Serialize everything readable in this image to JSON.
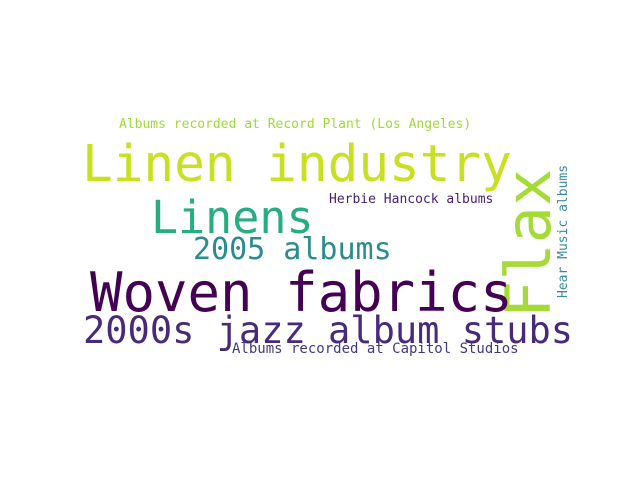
{
  "word_cloud": {
    "words": [
      {
        "id": "w1",
        "text": "Albums recorded at Record Plant (Los Angeles)",
        "color": "#a0da39"
      },
      {
        "id": "w2",
        "text": "Linen industry",
        "color": "#c8e020"
      },
      {
        "id": "w3",
        "text": "Flax",
        "color": "#a5db36"
      },
      {
        "id": "w4",
        "text": "Herbie Hancock albums",
        "color": "#482173"
      },
      {
        "id": "w5",
        "text": "Hear Music albums",
        "color": "#3e8a9c"
      },
      {
        "id": "w6",
        "text": "Linens",
        "color": "#26ad81"
      },
      {
        "id": "w7",
        "text": "2005 albums",
        "color": "#2a8c8c"
      },
      {
        "id": "w8",
        "text": "Woven fabrics",
        "color": "#440154"
      },
      {
        "id": "w9",
        "text": "2000s jazz album stubs",
        "color": "#472a7a"
      },
      {
        "id": "w10",
        "text": "Albums recorded at Capitol Studios",
        "color": "#453882"
      }
    ]
  }
}
